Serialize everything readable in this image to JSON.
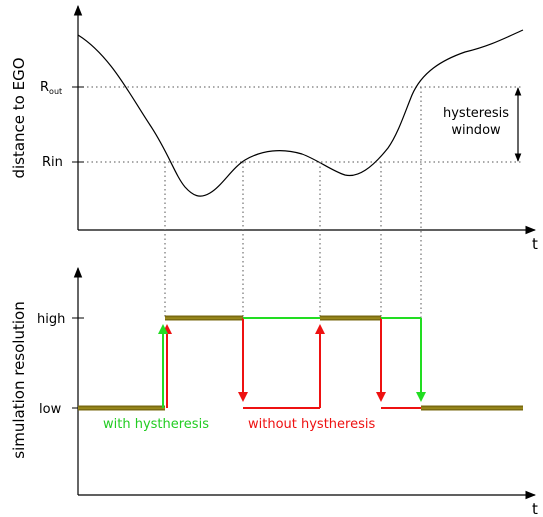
{
  "top_axis": {
    "ylabel": "distance to EGO",
    "xlabel": "t",
    "r_out_main": "R",
    "r_out_sub": "out",
    "r_in": "Rin",
    "window_line1": "hysteresis",
    "window_line2": "window"
  },
  "bottom_axis": {
    "ylabel": "simulation resolution",
    "xlabel": "t",
    "high": "high",
    "low": "low"
  },
  "legend": {
    "with": "with hystheresis",
    "without": "without hystheresis"
  },
  "colors": {
    "with": "#22dd22",
    "without": "#ee1111",
    "overlap_fill": "#7a6a10",
    "axis": "#000000",
    "guide": "#555555"
  }
}
